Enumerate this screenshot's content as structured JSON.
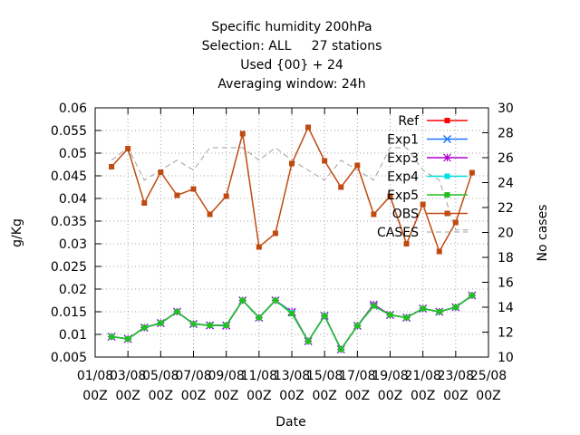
{
  "chart_data": {
    "type": "line",
    "title_lines": [
      "Specific humidity 200hPa",
      "Selection: ALL     27 stations",
      "Used {00} + 24",
      "Averaging window: 24h"
    ],
    "xlabel": "Date",
    "ylabel": "g/Kg",
    "y2label": "No cases",
    "ylim": [
      0.005,
      0.06
    ],
    "y2lim": [
      10,
      30
    ],
    "yticks": [
      "0.005",
      "0.01",
      "0.015",
      "0.02",
      "0.025",
      "0.03",
      "0.035",
      "0.04",
      "0.045",
      "0.05",
      "0.055",
      "0.06"
    ],
    "y2ticks": [
      "10",
      "12",
      "14",
      "16",
      "18",
      "20",
      "22",
      "24",
      "26",
      "28",
      "30"
    ],
    "xticks": [
      {
        "day": 0,
        "top": "01/08",
        "bottom": "00Z"
      },
      {
        "day": 2,
        "top": "03/08",
        "bottom": "00Z"
      },
      {
        "day": 4,
        "top": "05/08",
        "bottom": "00Z"
      },
      {
        "day": 6,
        "top": "07/08",
        "bottom": "00Z"
      },
      {
        "day": 8,
        "top": "09/08",
        "bottom": "00Z"
      },
      {
        "day": 10,
        "top": "11/08",
        "bottom": "00Z"
      },
      {
        "day": 12,
        "top": "13/08",
        "bottom": "00Z"
      },
      {
        "day": 14,
        "top": "15/08",
        "bottom": "00Z"
      },
      {
        "day": 16,
        "top": "17/08",
        "bottom": "00Z"
      },
      {
        "day": 18,
        "top": "19/08",
        "bottom": "00Z"
      },
      {
        "day": 20,
        "top": "21/08",
        "bottom": "00Z"
      },
      {
        "day": 22,
        "top": "23/08",
        "bottom": "00Z"
      },
      {
        "day": 24,
        "top": "25/08",
        "bottom": "00Z"
      }
    ],
    "xlim": [
      0,
      24
    ],
    "x": [
      1,
      2,
      3,
      4,
      5,
      6,
      7,
      8,
      9,
      10,
      11,
      12,
      13,
      14,
      15,
      16,
      17,
      18,
      19,
      20,
      21,
      22,
      23
    ],
    "grid": true,
    "legend_position": "top-right",
    "series": [
      {
        "name": "Ref",
        "color": "#ff0000",
        "marker": "square",
        "values": [
          0.0095,
          0.009,
          0.0115,
          0.0125,
          0.015,
          0.0123,
          0.012,
          0.012,
          0.0175,
          0.0137,
          0.0175,
          0.0148,
          0.0085,
          0.0141,
          0.0067,
          0.0119,
          0.0163,
          0.0143,
          0.0137,
          0.0157,
          0.015,
          0.016,
          0.0186
        ]
      },
      {
        "name": "Exp1",
        "color": "#1f77ff",
        "marker": "x",
        "values": [
          0.0095,
          0.009,
          0.0115,
          0.0125,
          0.015,
          0.0123,
          0.012,
          0.012,
          0.0175,
          0.0137,
          0.0175,
          0.0148,
          0.0085,
          0.0141,
          0.0067,
          0.0119,
          0.0163,
          0.0143,
          0.0137,
          0.0157,
          0.015,
          0.016,
          0.0186
        ]
      },
      {
        "name": "Exp3",
        "color": "#b000d0",
        "marker": "star",
        "values": [
          0.0095,
          0.009,
          0.0115,
          0.0125,
          0.015,
          0.0123,
          0.012,
          0.0119,
          0.0175,
          0.0137,
          0.0175,
          0.015,
          0.0085,
          0.0141,
          0.0067,
          0.0119,
          0.0166,
          0.0143,
          0.0137,
          0.0157,
          0.015,
          0.016,
          0.0186
        ]
      },
      {
        "name": "Exp4",
        "color": "#00e0e0",
        "marker": "square",
        "values": [
          0.0095,
          0.009,
          0.0115,
          0.0125,
          0.015,
          0.0123,
          0.012,
          0.012,
          0.0175,
          0.0137,
          0.0175,
          0.0148,
          0.0085,
          0.0141,
          0.0067,
          0.0119,
          0.0163,
          0.0143,
          0.0137,
          0.0157,
          0.015,
          0.016,
          0.0186
        ]
      },
      {
        "name": "Exp5",
        "color": "#22c022",
        "marker": "square",
        "values": [
          0.0095,
          0.009,
          0.0115,
          0.0125,
          0.015,
          0.0123,
          0.012,
          0.012,
          0.0175,
          0.0137,
          0.0175,
          0.0146,
          0.0085,
          0.0141,
          0.0067,
          0.0119,
          0.0163,
          0.0143,
          0.0137,
          0.0157,
          0.015,
          0.016,
          0.0186
        ]
      },
      {
        "name": "OBS",
        "color": "#c04a10",
        "marker": "square",
        "values": [
          0.047,
          0.051,
          0.039,
          0.0458,
          0.0407,
          0.0421,
          0.0365,
          0.0405,
          0.0543,
          0.0293,
          0.0323,
          0.0477,
          0.0557,
          0.0483,
          0.0425,
          0.0473,
          0.0365,
          0.0405,
          0.03,
          0.0387,
          0.0283,
          0.0347,
          0.0457
        ]
      }
    ],
    "cases": {
      "name": "CASES",
      "color": "#a0a0a0",
      "axis": "y2",
      "values": [
        25.8,
        26.8,
        24.2,
        25.0,
        25.8,
        25.0,
        26.8,
        26.8,
        26.8,
        25.8,
        26.8,
        25.8,
        25.0,
        24.2,
        25.8,
        25.0,
        24.2,
        26.8,
        26.8,
        25.0,
        24.2,
        20.2,
        20.2
      ]
    }
  }
}
